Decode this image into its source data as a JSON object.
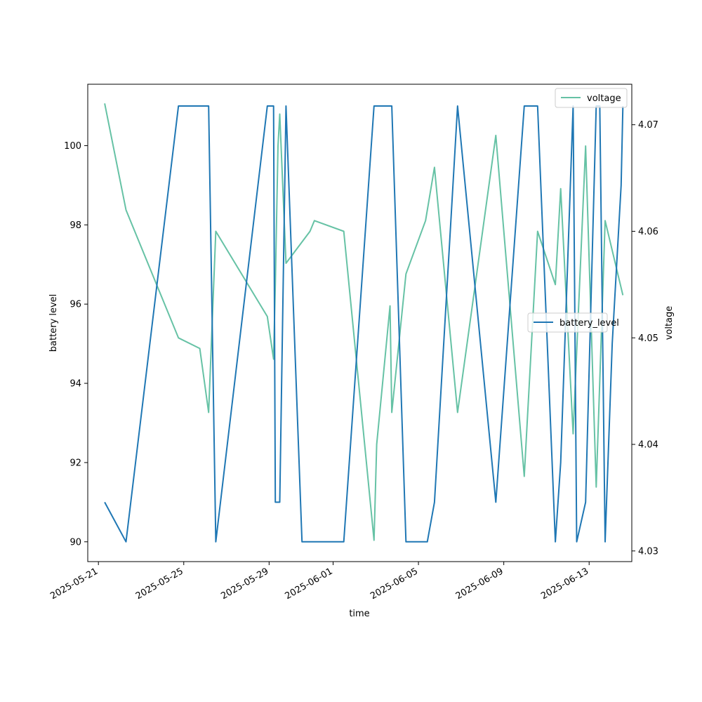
{
  "chart_data": {
    "type": "line",
    "xlabel": "time",
    "ylabel_left": "battery level",
    "ylabel_right": "voltage",
    "x_range": [
      "2025-05-20T12:00",
      "2025-06-15T00:00"
    ],
    "ylim_left": [
      89.5,
      101.55
    ],
    "ylim_right": [
      4.029,
      4.0738
    ],
    "x_ticks": [
      "2025-05-21",
      "2025-05-25",
      "2025-05-29",
      "2025-06-01",
      "2025-06-05",
      "2025-06-09",
      "2025-06-13"
    ],
    "y_ticks_left": [
      90,
      92,
      94,
      96,
      98,
      100
    ],
    "y_ticks_right": [
      4.03,
      4.04,
      4.05,
      4.06,
      4.07
    ],
    "grid": false,
    "legends": [
      {
        "series": "voltage",
        "placement": "upper-right"
      },
      {
        "series": "battery_level",
        "placement": "center-right"
      }
    ],
    "series": [
      {
        "name": "battery_level",
        "axis": "left",
        "color": "#1f77b4",
        "points": [
          [
            "2025-05-21T07:00",
            91
          ],
          [
            "2025-05-22T07:00",
            90
          ],
          [
            "2025-05-24T18:00",
            101
          ],
          [
            "2025-05-26T04:00",
            101
          ],
          [
            "2025-05-26T12:00",
            90
          ],
          [
            "2025-05-28T22:00",
            101
          ],
          [
            "2025-05-29T05:00",
            101
          ],
          [
            "2025-05-29T07:00",
            91
          ],
          [
            "2025-05-29T12:00",
            91
          ],
          [
            "2025-05-29T19:00",
            101
          ],
          [
            "2025-05-30T13:00",
            90
          ],
          [
            "2025-06-01T12:00",
            90
          ],
          [
            "2025-06-02T22:00",
            101
          ],
          [
            "2025-06-03T18:00",
            101
          ],
          [
            "2025-06-04T10:00",
            90
          ],
          [
            "2025-06-05T10:00",
            90
          ],
          [
            "2025-06-05T18:00",
            91
          ],
          [
            "2025-06-06T20:00",
            101
          ],
          [
            "2025-06-08T15:00",
            91
          ],
          [
            "2025-06-09T23:00",
            101
          ],
          [
            "2025-06-10T14:00",
            101
          ],
          [
            "2025-06-11T10:00",
            90
          ],
          [
            "2025-06-11T16:00",
            92
          ],
          [
            "2025-06-12T06:00",
            101
          ],
          [
            "2025-06-12T10:00",
            90
          ],
          [
            "2025-06-12T20:00",
            91
          ],
          [
            "2025-06-13T08:00",
            101
          ],
          [
            "2025-06-13T12:00",
            101
          ],
          [
            "2025-06-13T18:00",
            90
          ],
          [
            "2025-06-14T02:00",
            95
          ],
          [
            "2025-06-14T12:00",
            99
          ],
          [
            "2025-06-14T14:00",
            101
          ]
        ]
      },
      {
        "name": "voltage",
        "axis": "right",
        "color": "#66c2a5",
        "points": [
          [
            "2025-05-21T07:00",
            4.072
          ],
          [
            "2025-05-22T07:00",
            4.062
          ],
          [
            "2025-05-24T18:00",
            4.05
          ],
          [
            "2025-05-25T18:00",
            4.049
          ],
          [
            "2025-05-26T04:00",
            4.043
          ],
          [
            "2025-05-26T12:00",
            4.06
          ],
          [
            "2025-05-28T22:00",
            4.052
          ],
          [
            "2025-05-29T05:00",
            4.048
          ],
          [
            "2025-05-29T07:00",
            4.055
          ],
          [
            "2025-05-29T10:00",
            4.068
          ],
          [
            "2025-05-29T12:00",
            4.071
          ],
          [
            "2025-05-29T19:00",
            4.057
          ],
          [
            "2025-05-30T22:00",
            4.06
          ],
          [
            "2025-05-31T03:00",
            4.061
          ],
          [
            "2025-06-01T12:00",
            4.06
          ],
          [
            "2025-06-02T22:00",
            4.031
          ],
          [
            "2025-06-03T01:00",
            4.04
          ],
          [
            "2025-06-03T16:00",
            4.053
          ],
          [
            "2025-06-03T18:00",
            4.043
          ],
          [
            "2025-06-04T10:00",
            4.056
          ],
          [
            "2025-06-05T08:00",
            4.061
          ],
          [
            "2025-06-05T18:00",
            4.066
          ],
          [
            "2025-06-06T20:00",
            4.043
          ],
          [
            "2025-06-08T15:00",
            4.069
          ],
          [
            "2025-06-09T23:00",
            4.037
          ],
          [
            "2025-06-10T14:00",
            4.06
          ],
          [
            "2025-06-11T10:00",
            4.055
          ],
          [
            "2025-06-11T16:00",
            4.064
          ],
          [
            "2025-06-12T06:00",
            4.041
          ],
          [
            "2025-06-12T20:00",
            4.068
          ],
          [
            "2025-06-13T08:00",
            4.036
          ],
          [
            "2025-06-13T12:00",
            4.046
          ],
          [
            "2025-06-13T18:00",
            4.061
          ],
          [
            "2025-06-14T14:00",
            4.054
          ]
        ]
      }
    ]
  }
}
